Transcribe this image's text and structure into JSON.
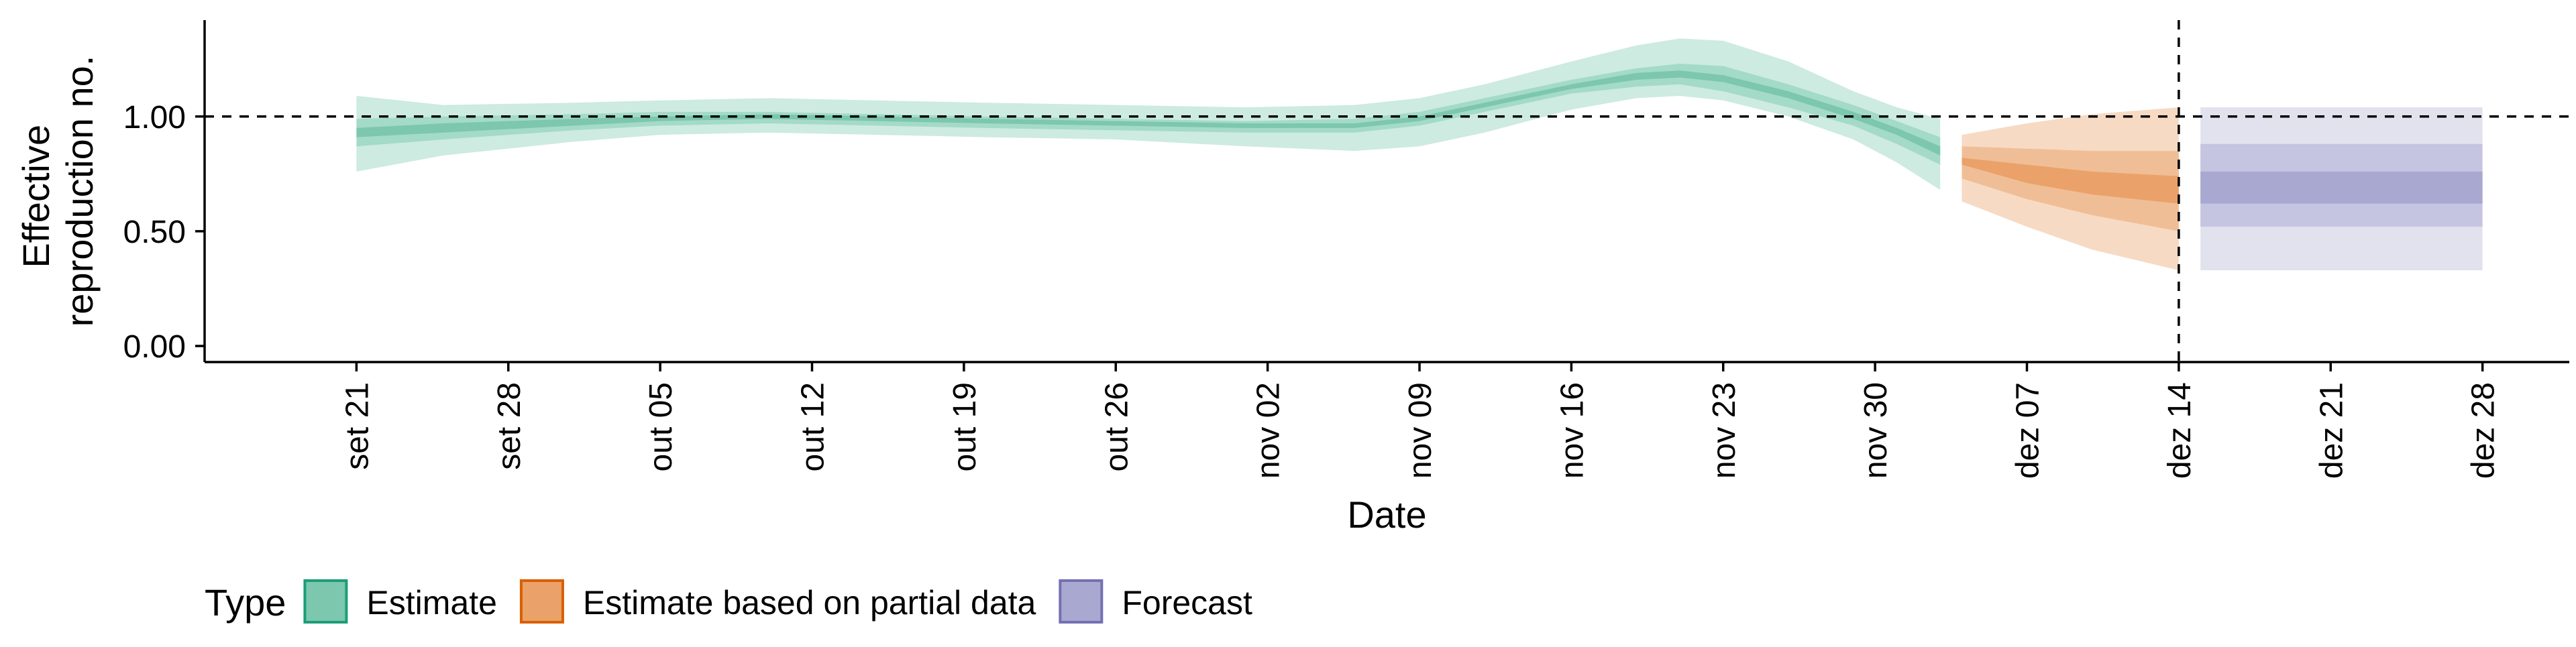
{
  "chart_data": {
    "type": "area",
    "title": "",
    "xlabel": "Date",
    "ylabel_lines": [
      "Effective",
      "reproduction no."
    ],
    "y_ticks": [
      0.0,
      0.5,
      1.0
    ],
    "y_tick_labels": [
      "0.00",
      "0.50",
      "1.00"
    ],
    "ylim": [
      -0.07,
      1.42
    ],
    "x_ticks": [
      "2020-09-21",
      "2020-09-28",
      "2020-10-05",
      "2020-10-12",
      "2020-10-19",
      "2020-10-26",
      "2020-11-02",
      "2020-11-09",
      "2020-11-16",
      "2020-11-23",
      "2020-11-30",
      "2020-12-07",
      "2020-12-14",
      "2020-12-21",
      "2020-12-28"
    ],
    "x_tick_labels": [
      "set 21",
      "set 28",
      "out 05",
      "out 12",
      "out 19",
      "out 26",
      "nov 02",
      "nov 09",
      "nov 16",
      "nov 23",
      "nov 30",
      "dez 07",
      "dez 14",
      "dez 21",
      "dez 28"
    ],
    "xlim": [
      "2020-09-14",
      "2021-01-01"
    ],
    "reference_lines": {
      "horizontal_y": 1.0,
      "vertical_x": "2020-12-14"
    },
    "grid": false,
    "legend": {
      "title": "Type",
      "placement": "bottom",
      "entries": [
        {
          "label": "Estimate",
          "fill": "#7CC7AE",
          "border": "#1B9E77"
        },
        {
          "label": "Estimate based on partial data",
          "fill": "#EAA26A",
          "border": "#D95F02"
        },
        {
          "label": "Forecast",
          "fill": "#A9A8D1",
          "border": "#7570B3"
        }
      ]
    },
    "series": [
      {
        "type": "Estimate",
        "colors": [
          "#CDEBE0",
          "#A4DAC8",
          "#7CC7AE"
        ],
        "x": [
          "2020-09-21",
          "2020-09-25",
          "2020-10-01",
          "2020-10-05",
          "2020-10-10",
          "2020-10-15",
          "2020-10-20",
          "2020-10-26",
          "2020-11-01",
          "2020-11-06",
          "2020-11-09",
          "2020-11-12",
          "2020-11-16",
          "2020-11-19",
          "2020-11-21",
          "2020-11-23",
          "2020-11-26",
          "2020-11-29",
          "2020-12-01",
          "2020-12-03"
        ],
        "lower90": [
          0.76,
          0.83,
          0.89,
          0.92,
          0.93,
          0.92,
          0.91,
          0.9,
          0.87,
          0.85,
          0.87,
          0.93,
          1.03,
          1.08,
          1.09,
          1.07,
          1.0,
          0.9,
          0.8,
          0.68
        ],
        "upper90": [
          1.09,
          1.05,
          1.06,
          1.07,
          1.08,
          1.07,
          1.06,
          1.05,
          1.04,
          1.05,
          1.08,
          1.14,
          1.24,
          1.31,
          1.34,
          1.33,
          1.24,
          1.11,
          1.04,
          0.99
        ],
        "lower50": [
          0.87,
          0.9,
          0.94,
          0.96,
          0.97,
          0.96,
          0.95,
          0.94,
          0.93,
          0.93,
          0.96,
          1.02,
          1.1,
          1.13,
          1.14,
          1.11,
          1.04,
          0.96,
          0.88,
          0.79
        ],
        "upper50": [
          0.99,
          1.0,
          1.01,
          1.02,
          1.02,
          1.01,
          1.0,
          0.99,
          0.98,
          0.99,
          1.02,
          1.08,
          1.16,
          1.21,
          1.23,
          1.22,
          1.14,
          1.05,
          0.98,
          0.91
        ],
        "lower20": [
          0.91,
          0.93,
          0.96,
          0.98,
          0.99,
          0.98,
          0.97,
          0.96,
          0.95,
          0.95,
          0.98,
          1.04,
          1.12,
          1.16,
          1.17,
          1.15,
          1.08,
          0.99,
          0.92,
          0.83
        ],
        "upper20": [
          0.95,
          0.97,
          0.99,
          1.0,
          1.01,
          1.0,
          0.99,
          0.98,
          0.97,
          0.97,
          1.0,
          1.06,
          1.14,
          1.19,
          1.2,
          1.18,
          1.11,
          1.02,
          0.95,
          0.87
        ]
      },
      {
        "type": "Estimate based on partial data",
        "colors": [
          "#F6DAC4",
          "#F0BE96",
          "#EAA26A"
        ],
        "x": [
          "2020-12-04",
          "2020-12-07",
          "2020-12-10",
          "2020-12-14"
        ],
        "lower90": [
          0.63,
          0.52,
          0.42,
          0.33
        ],
        "upper90": [
          0.92,
          0.97,
          1.01,
          1.04
        ],
        "lower50": [
          0.73,
          0.64,
          0.57,
          0.5
        ],
        "upper50": [
          0.87,
          0.86,
          0.85,
          0.85
        ],
        "lower20": [
          0.79,
          0.71,
          0.66,
          0.62
        ],
        "upper20": [
          0.82,
          0.79,
          0.76,
          0.74
        ]
      },
      {
        "type": "Forecast",
        "colors": [
          "#E2E1EE",
          "#C5C4E1",
          "#A9A8D1"
        ],
        "x": [
          "2020-12-15",
          "2020-12-28"
        ],
        "lower90": [
          0.33,
          0.33
        ],
        "upper90": [
          1.04,
          1.04
        ],
        "lower50": [
          0.52,
          0.52
        ],
        "upper50": [
          0.88,
          0.88
        ],
        "lower20": [
          0.62,
          0.62
        ],
        "upper20": [
          0.76,
          0.76
        ]
      }
    ]
  }
}
